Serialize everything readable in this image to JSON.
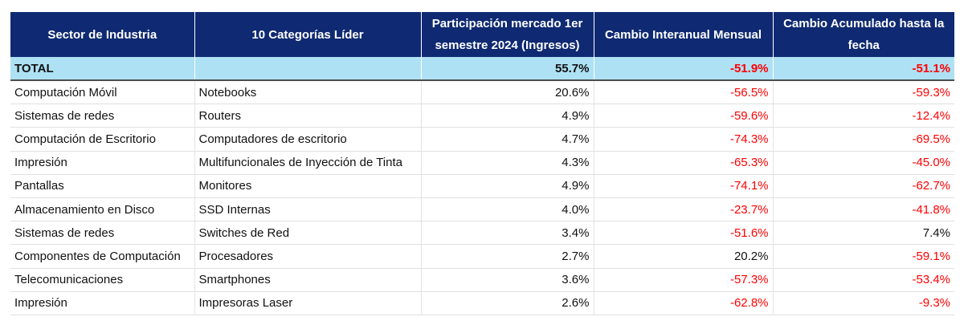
{
  "headers": {
    "sector": "Sector de Industria",
    "category": "10 Categorías Líder",
    "share": "Participación mercado 1er semestre 2024 (Ingresos)",
    "yoy": "Cambio Interanual Mensual",
    "ytd": "Cambio Acumulado hasta la fecha"
  },
  "total": {
    "label": "TOTAL",
    "category": "",
    "share": "55.7%",
    "yoy": "-51.9%",
    "ytd": "-51.1%"
  },
  "rows": [
    {
      "sector": "Computación Móvil",
      "category": "Notebooks",
      "share": "20.6%",
      "yoy": "-56.5%",
      "ytd": "-59.3%"
    },
    {
      "sector": "Sistemas de redes",
      "category": "Routers",
      "share": "4.9%",
      "yoy": "-59.6%",
      "ytd": "-12.4%"
    },
    {
      "sector": "Computación de Escritorio",
      "category": "Computadores de escritorio",
      "share": "4.7%",
      "yoy": "-74.3%",
      "ytd": "-69.5%"
    },
    {
      "sector": "Impresión",
      "category": "Multifuncionales de Inyección de Tinta",
      "share": "4.3%",
      "yoy": "-65.3%",
      "ytd": "-45.0%"
    },
    {
      "sector": "Pantallas",
      "category": "Monitores",
      "share": "4.9%",
      "yoy": "-74.1%",
      "ytd": "-62.7%"
    },
    {
      "sector": "Almacenamiento en Disco",
      "category": "SSD Internas",
      "share": "4.0%",
      "yoy": "-23.7%",
      "ytd": "-41.8%"
    },
    {
      "sector": "Sistemas de redes",
      "category": "Switches de Red",
      "share": "3.4%",
      "yoy": "-51.6%",
      "ytd": "7.4%"
    },
    {
      "sector": "Componentes de Computación",
      "category": "Procesadores",
      "share": "2.7%",
      "yoy": "20.2%",
      "ytd": "-59.1%"
    },
    {
      "sector": "Telecomunicaciones",
      "category": "Smartphones",
      "share": "3.6%",
      "yoy": "-57.3%",
      "ytd": "-53.4%"
    },
    {
      "sector": "Impresión",
      "category": "Impresoras Laser",
      "share": "2.6%",
      "yoy": "-62.8%",
      "ytd": "-9.3%"
    }
  ],
  "colors": {
    "header_bg": "#0f2a72",
    "total_bg": "#aee1f4",
    "negative": "#ff0000"
  }
}
